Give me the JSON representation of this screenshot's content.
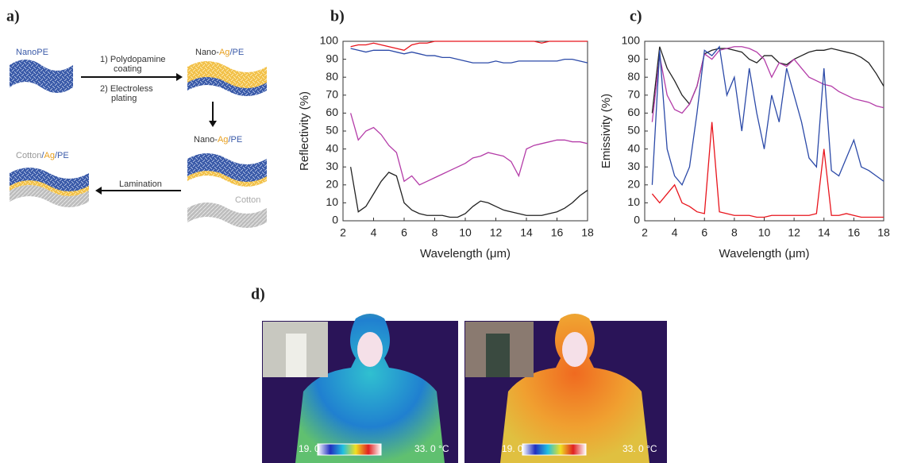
{
  "panel_labels": [
    "a)",
    "b)",
    "c)",
    "d)"
  ],
  "diagram": {
    "nanope": "NanoPE",
    "step1": [
      "1) Polydopamine",
      "coating"
    ],
    "step2": [
      "2) Electroless",
      "plating"
    ],
    "product1": [
      "Nano-",
      "Ag",
      "/PE"
    ],
    "product2": [
      "Nano-",
      "Ag",
      "/PE"
    ],
    "cotton": "Cotton",
    "lamination": "Lamination",
    "final": [
      "Cotton",
      "/",
      "Ag",
      "/",
      "PE"
    ]
  },
  "chart_data": [
    {
      "type": "line",
      "x_label": "Wavelength (μm)",
      "y_label": "Reflectivity (%)",
      "xlim": [
        2,
        18
      ],
      "xticks": [
        2,
        4,
        6,
        8,
        10,
        12,
        14,
        16,
        18
      ],
      "ylim": [
        0,
        100
      ],
      "yticks": [
        0,
        10,
        20,
        30,
        40,
        50,
        60,
        70,
        80,
        90,
        100
      ],
      "x": [
        2.5,
        3,
        3.5,
        4,
        4.5,
        5,
        5.5,
        6,
        6.5,
        7,
        7.5,
        8,
        8.5,
        9,
        9.5,
        10,
        10.5,
        11,
        11.5,
        12,
        12.5,
        13,
        13.5,
        14,
        14.5,
        15,
        15.5,
        16,
        16.5,
        17,
        17.5,
        18
      ],
      "series": [
        {
          "color": "#e8141c",
          "values": [
            97,
            98,
            98,
            99,
            98,
            97,
            96,
            95,
            98,
            99,
            99,
            100,
            100,
            100,
            100,
            100,
            100,
            100,
            100,
            100,
            100,
            100,
            100,
            100,
            100,
            99,
            100,
            100,
            100,
            100,
            100,
            100
          ]
        },
        {
          "color": "#2c4aa8",
          "values": [
            96,
            95,
            94,
            95,
            95,
            95,
            94,
            93,
            94,
            93,
            92,
            92,
            91,
            91,
            90,
            89,
            88,
            88,
            88,
            89,
            88,
            88,
            89,
            89,
            89,
            89,
            89,
            89,
            90,
            90,
            89,
            88
          ]
        },
        {
          "color": "#b43ca8",
          "values": [
            60,
            45,
            50,
            52,
            48,
            42,
            38,
            22,
            25,
            20,
            22,
            24,
            26,
            28,
            30,
            32,
            35,
            36,
            38,
            37,
            36,
            33,
            25,
            40,
            42,
            43,
            44,
            45,
            45,
            44,
            44,
            43
          ]
        },
        {
          "color": "#222222",
          "values": [
            30,
            5,
            8,
            15,
            22,
            27,
            25,
            10,
            6,
            4,
            3,
            3,
            3,
            2,
            2,
            4,
            8,
            11,
            10,
            8,
            6,
            5,
            4,
            3,
            3,
            3,
            4,
            5,
            7,
            10,
            14,
            17
          ]
        }
      ]
    },
    {
      "type": "line",
      "x_label": "Wavelength (μm)",
      "y_label": "Emissivity (%)",
      "xlim": [
        2,
        18
      ],
      "xticks": [
        2,
        4,
        6,
        8,
        10,
        12,
        14,
        16,
        18
      ],
      "ylim": [
        0,
        100
      ],
      "yticks": [
        0,
        10,
        20,
        30,
        40,
        50,
        60,
        70,
        80,
        90,
        100
      ],
      "x": [
        2.5,
        3,
        3.5,
        4,
        4.5,
        5,
        5.5,
        6,
        6.5,
        7,
        7.5,
        8,
        8.5,
        9,
        9.5,
        10,
        10.5,
        11,
        11.5,
        12,
        12.5,
        13,
        13.5,
        14,
        14.5,
        15,
        15.5,
        16,
        16.5,
        17,
        17.5,
        18
      ],
      "series": [
        {
          "color": "#222222",
          "values": [
            60,
            97,
            85,
            78,
            70,
            65,
            75,
            93,
            95,
            96,
            96,
            95,
            94,
            90,
            88,
            92,
            92,
            88,
            87,
            90,
            92,
            94,
            95,
            95,
            96,
            95,
            94,
            93,
            91,
            88,
            82,
            75
          ]
        },
        {
          "color": "#b43ca8",
          "values": [
            55,
            92,
            70,
            62,
            60,
            65,
            75,
            93,
            90,
            95,
            96,
            97,
            97,
            96,
            94,
            90,
            80,
            88,
            86,
            90,
            85,
            80,
            78,
            76,
            75,
            72,
            70,
            68,
            67,
            66,
            64,
            63
          ]
        },
        {
          "color": "#2c4aa8",
          "values": [
            20,
            95,
            40,
            25,
            20,
            30,
            60,
            95,
            92,
            97,
            70,
            80,
            50,
            85,
            60,
            40,
            70,
            55,
            85,
            70,
            55,
            35,
            30,
            85,
            28,
            25,
            35,
            45,
            30,
            28,
            25,
            22
          ]
        },
        {
          "color": "#e8141c",
          "values": [
            15,
            10,
            15,
            20,
            10,
            8,
            5,
            4,
            55,
            5,
            4,
            3,
            3,
            3,
            2,
            2,
            3,
            3,
            3,
            3,
            3,
            3,
            4,
            40,
            3,
            3,
            4,
            3,
            2,
            2,
            2,
            2
          ]
        }
      ]
    }
  ],
  "thermal_images": [
    {
      "min_label": "19. 0",
      "max_label": "33. 0 °C"
    },
    {
      "min_label": "19. 0",
      "max_label": "33. 0 °C"
    }
  ]
}
